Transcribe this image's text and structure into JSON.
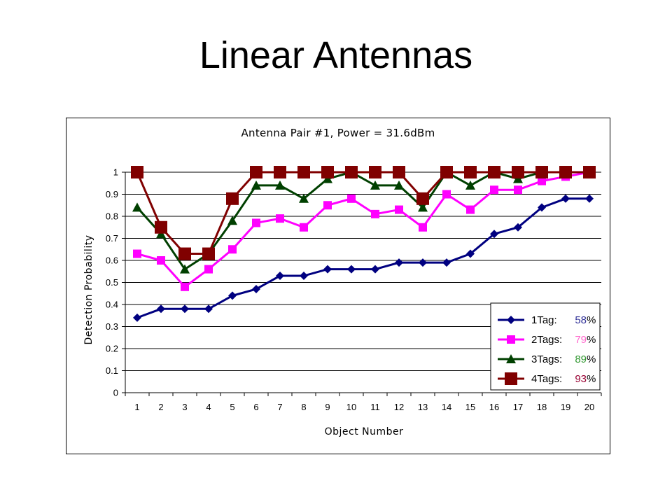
{
  "slide": {
    "title": "Linear Antennas"
  },
  "chart_data": {
    "type": "line",
    "title": "Antenna Pair #1, Power = 31.6dBm",
    "xlabel": "Object Number",
    "ylabel": "Detection Probability",
    "x": [
      1,
      2,
      3,
      4,
      5,
      6,
      7,
      8,
      9,
      10,
      11,
      12,
      13,
      14,
      15,
      16,
      17,
      18,
      19,
      20
    ],
    "ylim": [
      0,
      1
    ],
    "yticks": [
      "0",
      "0.1",
      "0.2",
      "0.3",
      "0.4",
      "0.5",
      "0.6",
      "0.7",
      "0.8",
      "0.9",
      "1"
    ],
    "grid": "horizontal",
    "legend_position": "bottom-right",
    "series": [
      {
        "name": "1Tag:",
        "pct_label": "58",
        "pct_sign": "%",
        "color": "#000080",
        "pct_color": "#333399",
        "marker": "diamond",
        "values": [
          0.34,
          0.38,
          0.38,
          0.38,
          0.44,
          0.47,
          0.53,
          0.53,
          0.56,
          0.56,
          0.56,
          0.59,
          0.59,
          0.59,
          0.63,
          0.72,
          0.75,
          0.84,
          0.88,
          0.88
        ]
      },
      {
        "name": "2Tags:",
        "pct_label": "79",
        "pct_sign": "%",
        "color": "#FF00FF",
        "pct_color": "#FF66CC",
        "marker": "square",
        "values": [
          0.63,
          0.6,
          0.48,
          0.56,
          0.65,
          0.77,
          0.79,
          0.75,
          0.85,
          0.88,
          0.81,
          0.83,
          0.75,
          0.9,
          0.83,
          0.92,
          0.92,
          0.96,
          0.98,
          1.0
        ]
      },
      {
        "name": "3Tags:",
        "pct_label": "89",
        "pct_sign": "%",
        "color": "#004000",
        "pct_color": "#339933",
        "marker": "triangle",
        "values": [
          0.84,
          0.72,
          0.56,
          0.63,
          0.78,
          0.94,
          0.94,
          0.88,
          0.97,
          1.0,
          0.94,
          0.94,
          0.84,
          1.0,
          0.94,
          1.0,
          0.97,
          1.0,
          1.0,
          1.0
        ]
      },
      {
        "name": "4Tags:",
        "pct_label": "93",
        "pct_sign": "%",
        "color": "#800000",
        "pct_color": "#990033",
        "marker": "bigsquare",
        "values": [
          1.0,
          0.75,
          0.63,
          0.63,
          0.88,
          1.0,
          1.0,
          1.0,
          1.0,
          1.0,
          1.0,
          1.0,
          0.88,
          1.0,
          1.0,
          1.0,
          1.0,
          1.0,
          1.0,
          1.0
        ]
      }
    ]
  }
}
